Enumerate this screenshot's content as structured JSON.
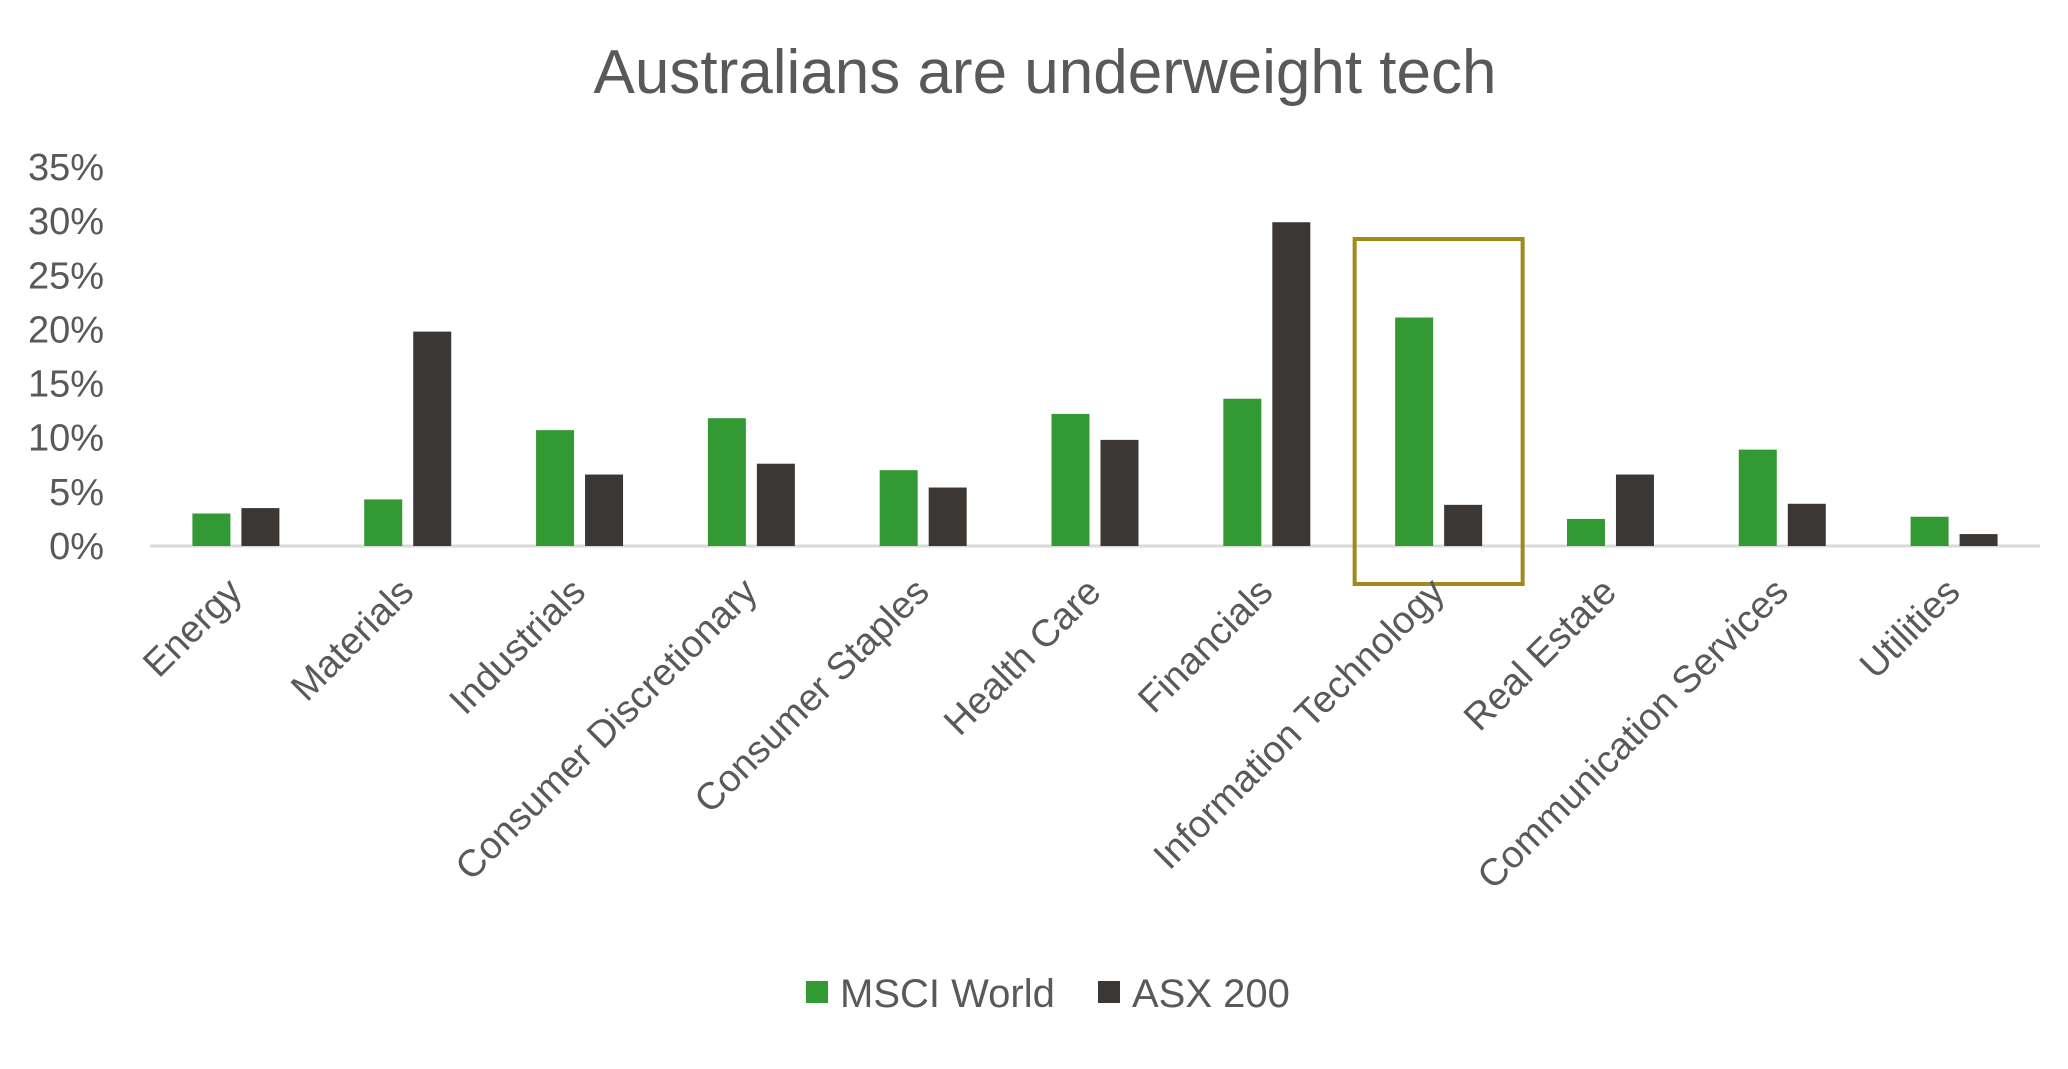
{
  "chart_data": {
    "type": "bar",
    "title": "Australians are underweight tech",
    "xlabel": "",
    "ylabel": "",
    "ylim": [
      0,
      35
    ],
    "yticks": [
      "0%",
      "5%",
      "10%",
      "15%",
      "20%",
      "25%",
      "30%",
      "35%"
    ],
    "categories": [
      "Energy",
      "Materials",
      "Industrials",
      "Consumer Discretionary",
      "Consumer Staples",
      "Health Care",
      "Financials",
      "Information Technology",
      "Real Estate",
      "Communication Services",
      "Utilities"
    ],
    "series": [
      {
        "name": "MSCI World",
        "color": "#339933",
        "values": [
          3.0,
          4.3,
          10.7,
          11.8,
          7.0,
          12.2,
          13.6,
          21.1,
          2.5,
          8.9,
          2.7
        ]
      },
      {
        "name": "ASX 200",
        "color": "#3b3735",
        "values": [
          3.5,
          19.8,
          6.6,
          7.6,
          5.4,
          9.8,
          29.9,
          3.8,
          6.6,
          3.9,
          1.1
        ]
      }
    ],
    "grid": false,
    "legend_position": "bottom",
    "highlight": {
      "category": "Information Technology",
      "color": "#a08a1e"
    }
  }
}
